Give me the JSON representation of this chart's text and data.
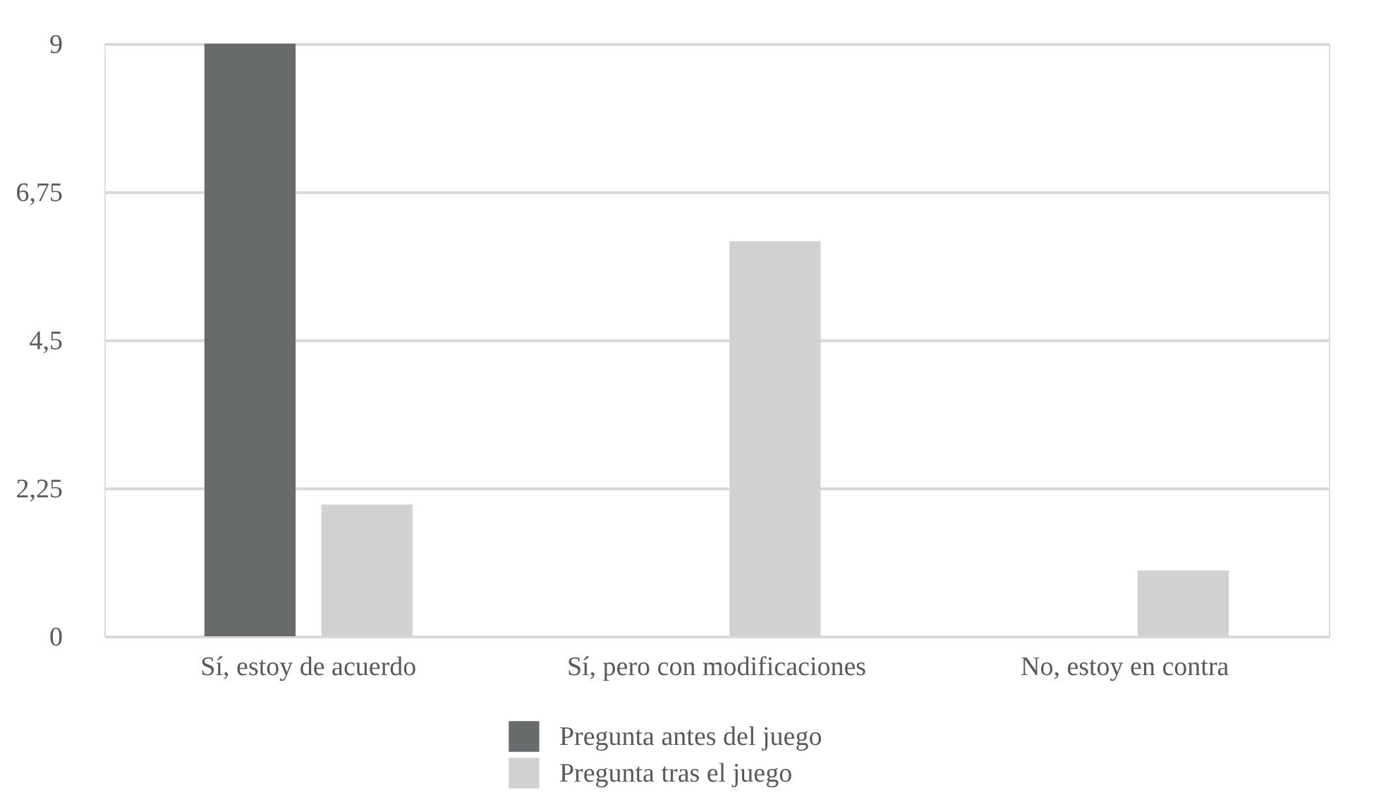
{
  "chart_data": {
    "type": "bar",
    "categories": [
      "Sí, estoy de acuerdo",
      "Sí, pero con modificaciones",
      "No, estoy en contra"
    ],
    "series": [
      {
        "name": "Pregunta antes del juego",
        "color": "#686b6c",
        "values": [
          9,
          0,
          0
        ]
      },
      {
        "name": "Pregunta tras el juego",
        "color": "#d0d2d1",
        "values": [
          2,
          6,
          1
        ]
      }
    ],
    "ylim": [
      0,
      9
    ],
    "yticks": [
      0,
      {
        "value": 2.25,
        "label": "2,25"
      },
      {
        "value": 4.5,
        "label": "4,5"
      },
      {
        "value": 6.75,
        "label": "6,75"
      },
      9
    ],
    "grid": "y",
    "legend": "bottom"
  }
}
